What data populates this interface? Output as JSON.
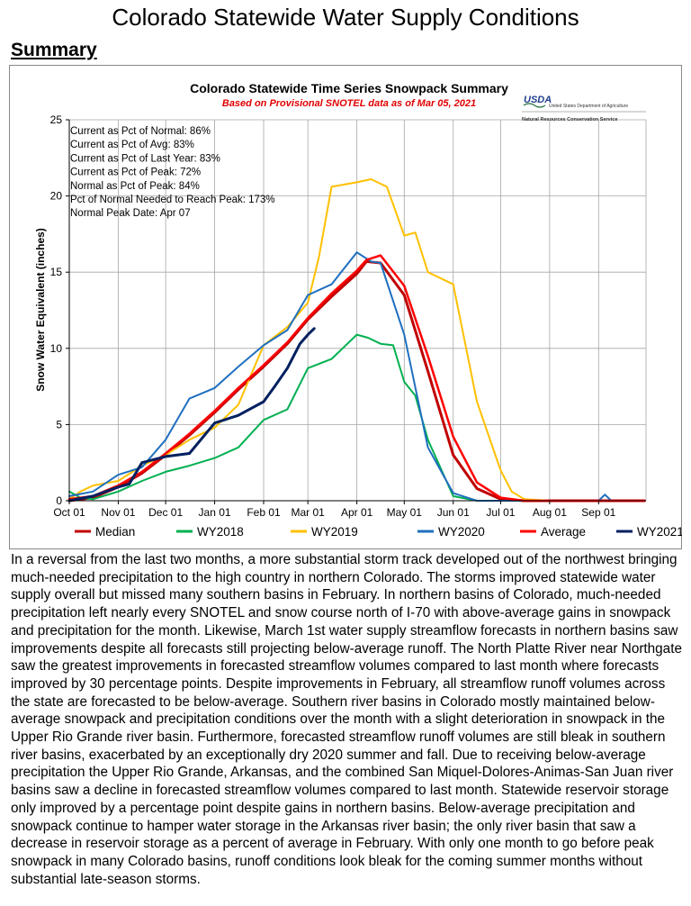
{
  "page_title": "Colorado Statewide Water Supply Conditions",
  "section_heading": "Summary",
  "usda": {
    "logo_text": "USDA",
    "agency_line1": "United States Department of Agriculture",
    "agency_line2": "Natural Resources Conservation Service"
  },
  "stats": [
    "Current as Pct of Normal: 86%",
    "Current as Pct of Avg: 83%",
    "Current as Pct of Last Year: 83%",
    "Current as Pct of Peak: 72%",
    "Normal as Pct of Peak: 84%",
    "Pct of Normal Needed to Reach Peak: 173%",
    "Normal Peak Date: Apr 07"
  ],
  "summary_paragraph": "In a reversal from the last two months, a more substantial storm track developed out of the northwest bringing much-needed precipitation to the high country in northern Colorado. The storms improved statewide water supply overall but missed many southern basins in February. In northern basins of Colorado, much-needed precipitation left nearly every SNOTEL and snow course north of I-70 with above-average gains in snowpack and precipitation for the month. Likewise, March 1st water supply streamflow forecasts in northern basins saw improvements despite all forecasts still projecting below-average runoff. The North Platte River near Northgate saw the greatest improvements in forecasted streamflow volumes compared to last month where forecasts improved by 30 percentage points. Despite improvements in February, all streamflow runoff volumes across the state are forecasted to be below-average. Southern river basins in Colorado mostly maintained below-average snowpack and precipitation conditions over the month with a slight deterioration in snowpack in the Upper Rio Grande river basin. Furthermore, forecasted streamflow runoff volumes are still bleak in southern river basins, exacerbated by an exceptionally dry 2020 summer and fall. Due to receiving below-average precipitation the Upper Rio Grande, Arkansas, and the combined San Miquel-Dolores-Animas-San Juan river basins saw a decline in forecasted streamflow volumes compared to last month. Statewide reservoir storage only improved by a percentage point despite gains in northern basins. Below-average precipitation and snowpack continue to hamper water storage in the Arkansas river basin; the only river basin that saw a decrease in reservoir storage as a percent of average in February. With only one month to go before peak snowpack in many Colorado basins, runoff conditions look bleak for the coming summer months without substantial late-season storms.",
  "chart_data": {
    "type": "line",
    "title": "Colorado Statewide Time Series Snowpack Summary",
    "subtitle": "Based on Provisional SNOTEL data as of Mar 05, 2021",
    "xlabel": "",
    "ylabel": "Snow Water Equivalent (inches)",
    "x_tick_labels": [
      "Oct 01",
      "Nov 01",
      "Dec 01",
      "Jan 01",
      "Feb 01",
      "Mar 01",
      "Apr 01",
      "May 01",
      "Jun 01",
      "Jul 01",
      "Aug 01",
      "Sep 01"
    ],
    "y_ticks": [
      0,
      5,
      10,
      15,
      20,
      25
    ],
    "ylim": [
      0,
      25
    ],
    "grid": true,
    "legend_position": "bottom",
    "series": [
      {
        "name": "Median",
        "color": "#c00000",
        "width": 3,
        "points": [
          [
            "Oct 01",
            0
          ],
          [
            "Oct 16",
            0.2
          ],
          [
            "Nov 01",
            0.9
          ],
          [
            "Nov 16",
            1.8
          ],
          [
            "Dec 01",
            3.0
          ],
          [
            "Dec 16",
            4.3
          ],
          [
            "Jan 01",
            5.8
          ],
          [
            "Jan 16",
            7.3
          ],
          [
            "Feb 01",
            8.8
          ],
          [
            "Feb 16",
            10.3
          ],
          [
            "Mar 01",
            11.9
          ],
          [
            "Mar 16",
            13.4
          ],
          [
            "Apr 01",
            14.9
          ],
          [
            "Apr 07",
            15.7
          ],
          [
            "Apr 16",
            15.6
          ],
          [
            "May 01",
            13.5
          ],
          [
            "May 16",
            8.5
          ],
          [
            "Jun 01",
            3.0
          ],
          [
            "Jun 16",
            0.8
          ],
          [
            "Jul 01",
            0.1
          ],
          [
            "Jul 16",
            0
          ],
          [
            "Sep 30",
            0
          ]
        ]
      },
      {
        "name": "WY2018",
        "color": "#00b050",
        "width": 2,
        "points": [
          [
            "Oct 01",
            0.6
          ],
          [
            "Oct 08",
            0.2
          ],
          [
            "Oct 16",
            0.1
          ],
          [
            "Nov 01",
            0.6
          ],
          [
            "Nov 16",
            1.3
          ],
          [
            "Dec 01",
            1.9
          ],
          [
            "Dec 16",
            2.3
          ],
          [
            "Jan 01",
            2.8
          ],
          [
            "Jan 16",
            3.5
          ],
          [
            "Feb 01",
            5.3
          ],
          [
            "Feb 16",
            6.0
          ],
          [
            "Mar 01",
            8.7
          ],
          [
            "Mar 16",
            9.3
          ],
          [
            "Apr 01",
            10.9
          ],
          [
            "Apr 08",
            10.7
          ],
          [
            "Apr 16",
            10.3
          ],
          [
            "Apr 24",
            10.2
          ],
          [
            "May 01",
            7.8
          ],
          [
            "May 08",
            6.9
          ],
          [
            "May 16",
            4.0
          ],
          [
            "Jun 01",
            0.3
          ],
          [
            "Jun 16",
            0
          ],
          [
            "Sep 30",
            0
          ]
        ]
      },
      {
        "name": "WY2019",
        "color": "#ffc000",
        "width": 2,
        "points": [
          [
            "Oct 01",
            0.1
          ],
          [
            "Oct 08",
            0.6
          ],
          [
            "Oct 16",
            1.0
          ],
          [
            "Nov 01",
            1.3
          ],
          [
            "Nov 16",
            2.3
          ],
          [
            "Dec 01",
            3.0
          ],
          [
            "Dec 16",
            4.0
          ],
          [
            "Jan 01",
            4.8
          ],
          [
            "Jan 16",
            6.3
          ],
          [
            "Feb 01",
            10.2
          ],
          [
            "Feb 16",
            11.4
          ],
          [
            "Mar 01",
            13.0
          ],
          [
            "Mar 08",
            16.0
          ],
          [
            "Mar 16",
            20.6
          ],
          [
            "Apr 01",
            20.9
          ],
          [
            "Apr 10",
            21.1
          ],
          [
            "Apr 20",
            20.6
          ],
          [
            "May 01",
            17.4
          ],
          [
            "May 08",
            17.6
          ],
          [
            "May 16",
            15.0
          ],
          [
            "Jun 01",
            14.2
          ],
          [
            "Jun 16",
            6.5
          ],
          [
            "Jul 01",
            2.0
          ],
          [
            "Jul 08",
            0.6
          ],
          [
            "Jul 16",
            0.1
          ],
          [
            "Aug 01",
            0
          ],
          [
            "Sep 30",
            0
          ]
        ]
      },
      {
        "name": "WY2020",
        "color": "#1f6fbf",
        "width": 2,
        "points": [
          [
            "Oct 01",
            0.3
          ],
          [
            "Oct 16",
            0.6
          ],
          [
            "Nov 01",
            1.7
          ],
          [
            "Nov 16",
            2.2
          ],
          [
            "Dec 01",
            4.0
          ],
          [
            "Dec 16",
            6.7
          ],
          [
            "Jan 01",
            7.4
          ],
          [
            "Jan 16",
            8.8
          ],
          [
            "Feb 01",
            10.2
          ],
          [
            "Feb 16",
            11.2
          ],
          [
            "Mar 01",
            13.5
          ],
          [
            "Mar 16",
            14.2
          ],
          [
            "Apr 01",
            16.3
          ],
          [
            "Apr 10",
            15.7
          ],
          [
            "Apr 16",
            15.6
          ],
          [
            "May 01",
            10.9
          ],
          [
            "May 16",
            3.5
          ],
          [
            "Jun 01",
            0.5
          ],
          [
            "Jun 16",
            0
          ],
          [
            "Sep 01",
            0
          ],
          [
            "Sep 05",
            0.4
          ],
          [
            "Sep 09",
            0
          ],
          [
            "Sep 30",
            0
          ]
        ]
      },
      {
        "name": "Average",
        "color": "#ff0000",
        "width": 2.5,
        "points": [
          [
            "Oct 01",
            0.1
          ],
          [
            "Oct 16",
            0.3
          ],
          [
            "Nov 01",
            1.0
          ],
          [
            "Nov 16",
            1.9
          ],
          [
            "Dec 01",
            3.1
          ],
          [
            "Dec 16",
            4.4
          ],
          [
            "Jan 01",
            5.9
          ],
          [
            "Jan 16",
            7.4
          ],
          [
            "Feb 01",
            8.9
          ],
          [
            "Feb 16",
            10.4
          ],
          [
            "Mar 01",
            12.0
          ],
          [
            "Mar 16",
            13.6
          ],
          [
            "Apr 01",
            15.1
          ],
          [
            "Apr 07",
            15.8
          ],
          [
            "Apr 16",
            16.1
          ],
          [
            "May 01",
            14.1
          ],
          [
            "May 16",
            9.5
          ],
          [
            "Jun 01",
            4.2
          ],
          [
            "Jun 16",
            1.2
          ],
          [
            "Jul 01",
            0.2
          ],
          [
            "Jul 16",
            0
          ],
          [
            "Sep 30",
            0
          ]
        ]
      },
      {
        "name": "WY2021",
        "color": "#002060",
        "width": 3,
        "points": [
          [
            "Oct 01",
            0
          ],
          [
            "Oct 16",
            0.3
          ],
          [
            "Nov 01",
            0.9
          ],
          [
            "Nov 08",
            1.1
          ],
          [
            "Nov 16",
            2.5
          ],
          [
            "Dec 01",
            2.9
          ],
          [
            "Dec 16",
            3.1
          ],
          [
            "Jan 01",
            5.1
          ],
          [
            "Jan 16",
            5.6
          ],
          [
            "Feb 01",
            6.5
          ],
          [
            "Feb 08",
            7.5
          ],
          [
            "Feb 16",
            8.7
          ],
          [
            "Feb 24",
            10.3
          ],
          [
            "Mar 01",
            10.9
          ],
          [
            "Mar 05",
            11.3
          ]
        ]
      }
    ]
  }
}
